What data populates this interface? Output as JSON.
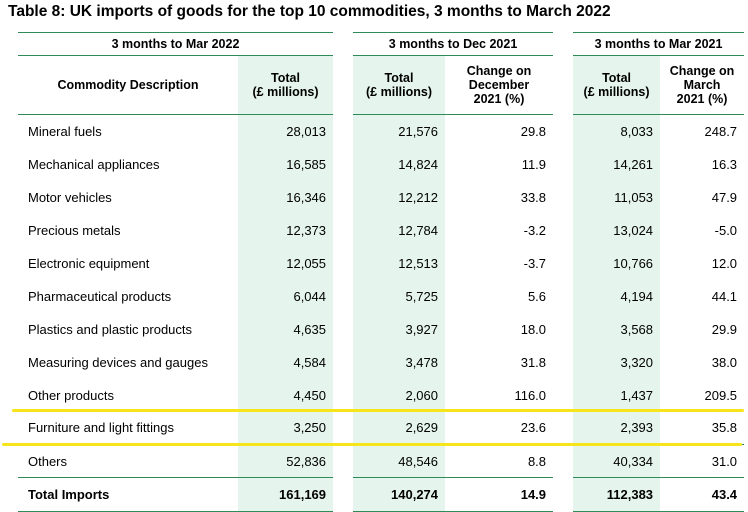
{
  "title": "Table 8: UK imports of goods for the top 10 commodities, 3 months to March 2022",
  "header": {
    "groups": [
      "3 months to Mar 2022",
      "3 months to Dec 2021",
      "3 months to Mar 2021"
    ],
    "commodity_description": "Commodity Description",
    "total_label": "Total",
    "total_unit": "(£ millions)",
    "change_dec": [
      "Change on",
      "December",
      "2021 (%)"
    ],
    "change_mar": [
      "Change on",
      "March",
      "2021 (%)"
    ]
  },
  "rows": [
    {
      "desc": "Mineral fuels",
      "mar22": "28,013",
      "dec21": "21,576",
      "chg_dec": "29.8",
      "mar21": "8,033",
      "chg_mar": "248.7"
    },
    {
      "desc": "Mechanical appliances",
      "mar22": "16,585",
      "dec21": "14,824",
      "chg_dec": "11.9",
      "mar21": "14,261",
      "chg_mar": "16.3"
    },
    {
      "desc": "Motor vehicles",
      "mar22": "16,346",
      "dec21": "12,212",
      "chg_dec": "33.8",
      "mar21": "11,053",
      "chg_mar": "47.9"
    },
    {
      "desc": "Precious metals",
      "mar22": "12,373",
      "dec21": "12,784",
      "chg_dec": "-3.2",
      "mar21": "13,024",
      "chg_mar": "-5.0"
    },
    {
      "desc": "Electronic equipment",
      "mar22": "12,055",
      "dec21": "12,513",
      "chg_dec": "-3.7",
      "mar21": "10,766",
      "chg_mar": "12.0"
    },
    {
      "desc": "Pharmaceutical products",
      "mar22": "6,044",
      "dec21": "5,725",
      "chg_dec": "5.6",
      "mar21": "4,194",
      "chg_mar": "44.1"
    },
    {
      "desc": "Plastics and plastic products",
      "mar22": "4,635",
      "dec21": "3,927",
      "chg_dec": "18.0",
      "mar21": "3,568",
      "chg_mar": "29.9"
    },
    {
      "desc": "Measuring devices and gauges",
      "mar22": "4,584",
      "dec21": "3,478",
      "chg_dec": "31.8",
      "mar21": "3,320",
      "chg_mar": "38.0"
    },
    {
      "desc": "Other products",
      "mar22": "4,450",
      "dec21": "2,060",
      "chg_dec": "116.0",
      "mar21": "1,437",
      "chg_mar": "209.5"
    },
    {
      "desc": "Furniture and light fittings",
      "mar22": "3,250",
      "dec21": "2,629",
      "chg_dec": "23.6",
      "mar21": "2,393",
      "chg_mar": "35.8"
    }
  ],
  "others": {
    "desc": "Others",
    "mar22": "52,836",
    "dec21": "48,546",
    "chg_dec": "8.8",
    "mar21": "40,334",
    "chg_mar": "31.0"
  },
  "total": {
    "desc": "Total Imports",
    "mar22": "161,169",
    "dec21": "140,274",
    "chg_dec": "14.9",
    "mar21": "112,383",
    "chg_mar": "43.4"
  },
  "colors": {
    "rule": "#2e8b57",
    "shade": "#e5f5ee",
    "highlight": "#f5e51a"
  }
}
